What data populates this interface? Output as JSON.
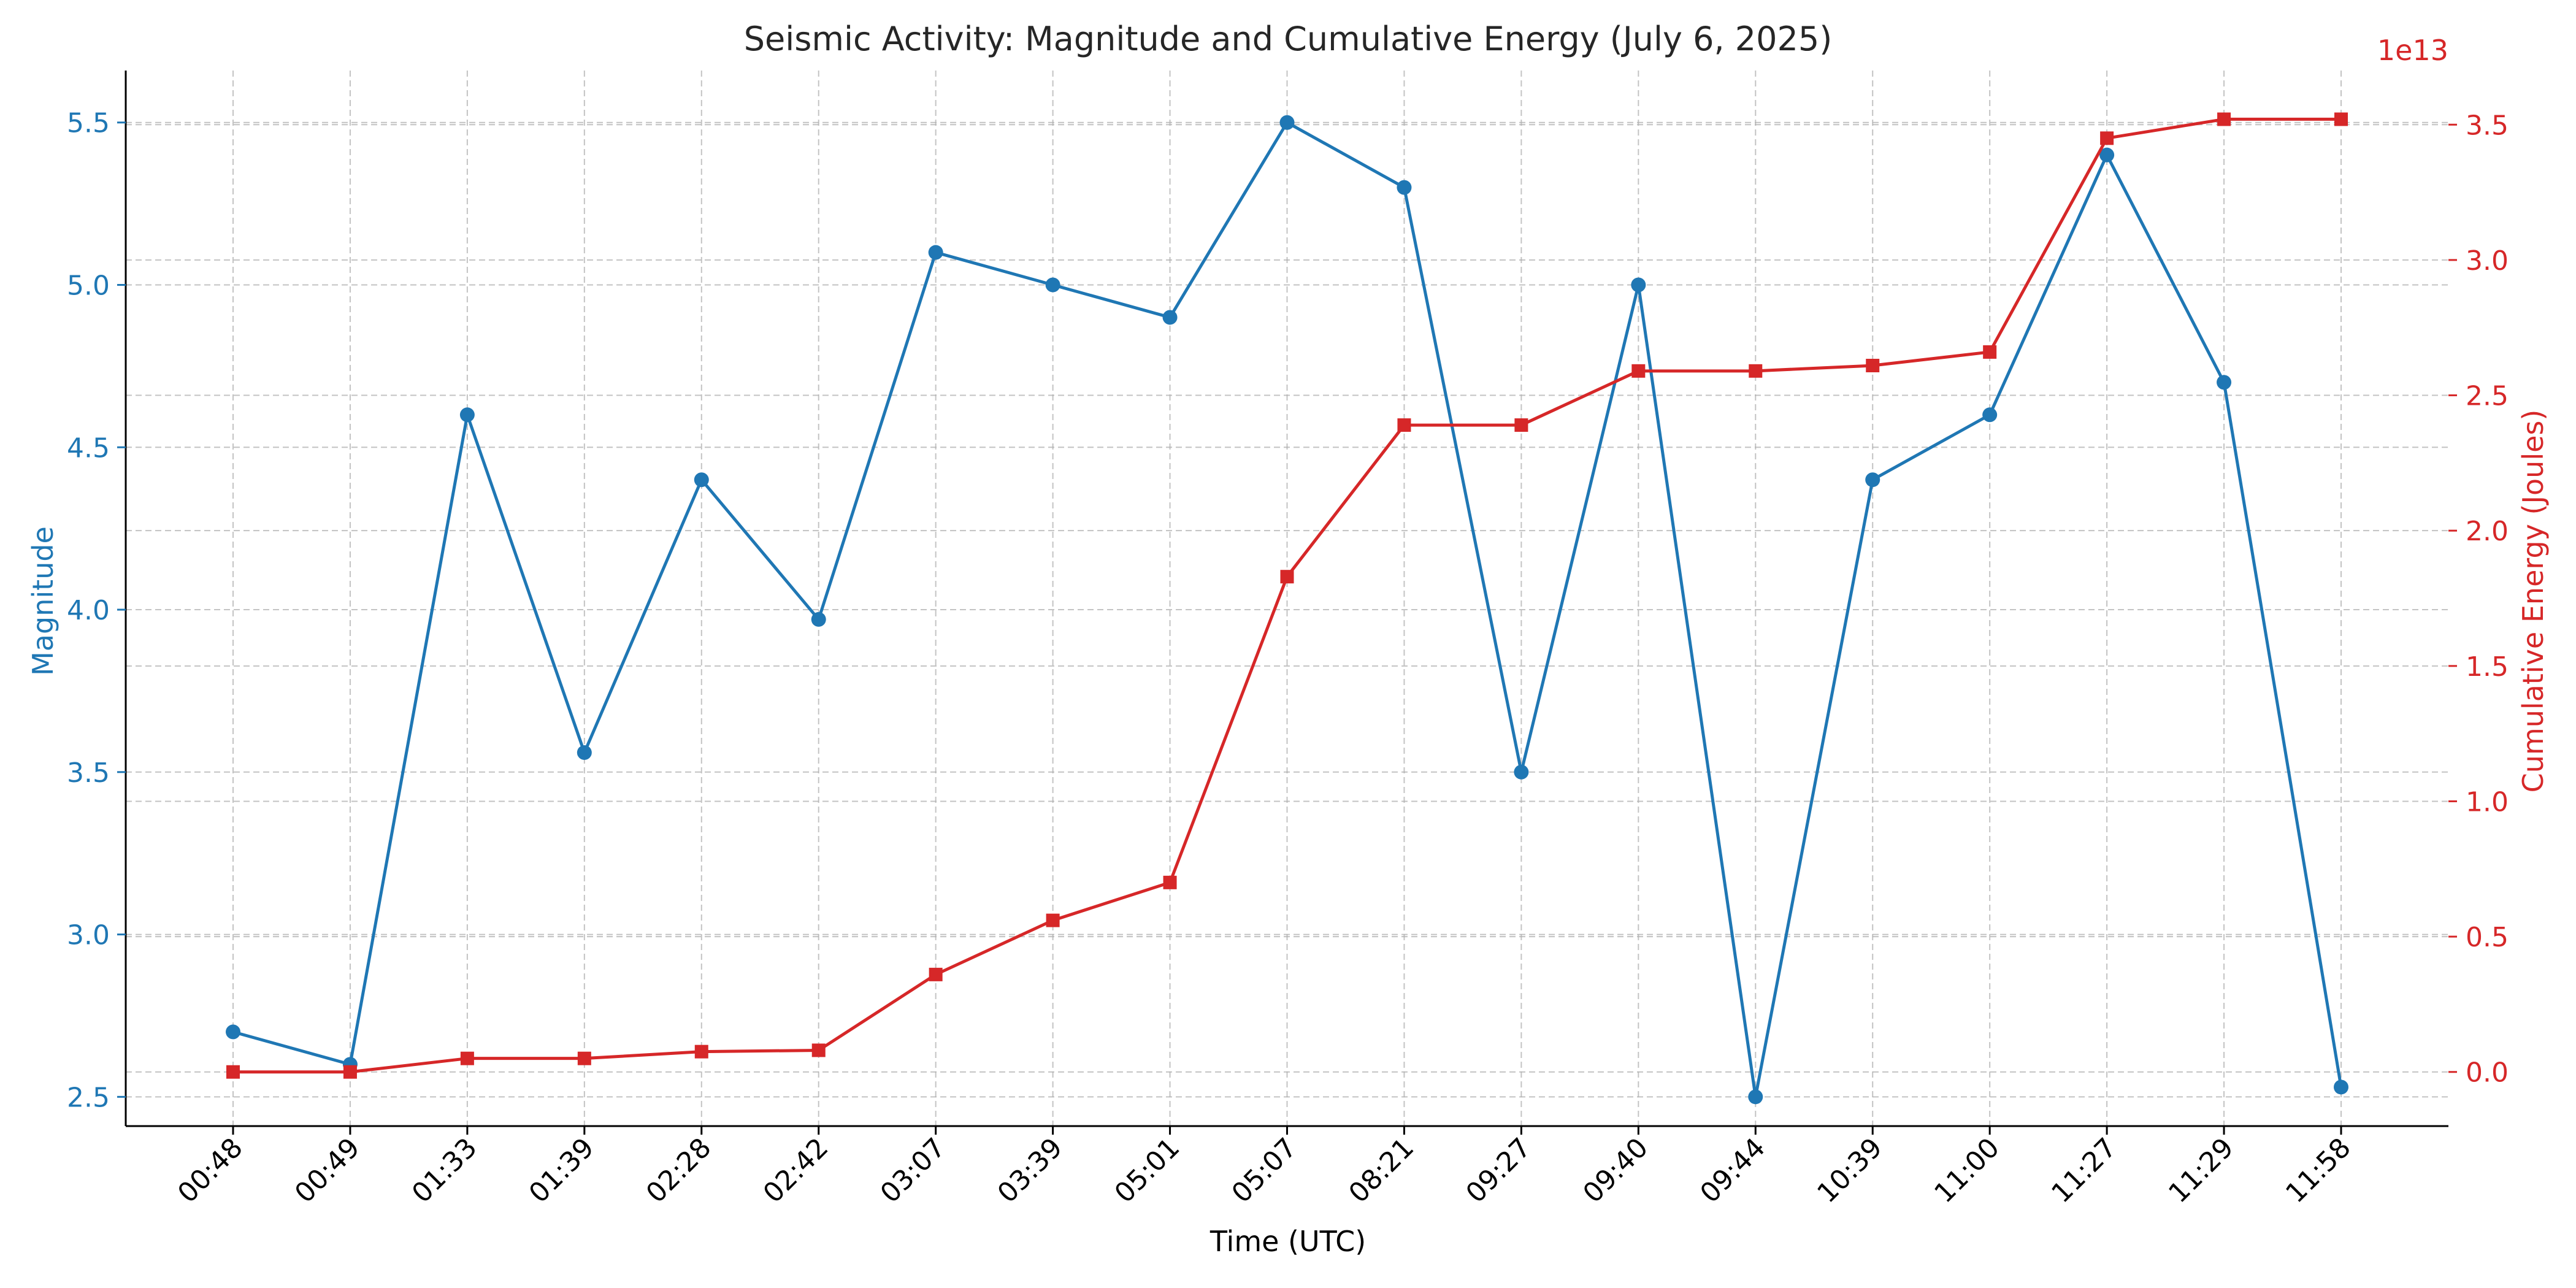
{
  "chart_data": {
    "type": "line",
    "title": "Seismic Activity: Magnitude and Cumulative Energy (July 6, 2025)",
    "xlabel": "Time (UTC)",
    "ylabel_left": "Magnitude",
    "ylabel_right": "Cumulative Energy (Joules)",
    "right_axis_offset_label": "1e13",
    "categories": [
      "00:48",
      "00:49",
      "01:33",
      "01:39",
      "02:28",
      "02:42",
      "03:07",
      "03:39",
      "05:01",
      "05:07",
      "08:21",
      "09:27",
      "09:40",
      "09:44",
      "10:39",
      "11:00",
      "11:27",
      "11:29",
      "11:58"
    ],
    "ylim_left": [
      2.41,
      5.66
    ],
    "yticks_left": [
      "2.5",
      "3.0",
      "3.5",
      "4.0",
      "4.5",
      "5.0",
      "5.5"
    ],
    "ylim_right": [
      -0.2,
      3.7
    ],
    "yticks_right": [
      "0.0",
      "0.5",
      "1.0",
      "1.5",
      "2.0",
      "2.5",
      "3.0",
      "3.5"
    ],
    "grid": true,
    "series": [
      {
        "name": "Magnitude",
        "axis": "left",
        "color": "#1f77b4",
        "marker": "circle",
        "values": [
          2.7,
          2.6,
          4.6,
          3.56,
          4.4,
          3.97,
          5.1,
          5.0,
          4.9,
          5.5,
          5.3,
          3.5,
          5.0,
          2.5,
          4.4,
          4.6,
          5.4,
          4.7,
          2.53
        ]
      },
      {
        "name": "Cumulative Energy (Joules)",
        "axis": "right",
        "color": "#d62728",
        "marker": "square",
        "values": [
          0.0,
          0.0,
          0.05,
          0.05,
          0.075,
          0.08,
          0.36,
          0.56,
          0.7,
          1.83,
          2.39,
          2.39,
          2.59,
          2.59,
          2.61,
          2.66,
          3.45,
          3.52,
          3.52
        ]
      }
    ]
  }
}
